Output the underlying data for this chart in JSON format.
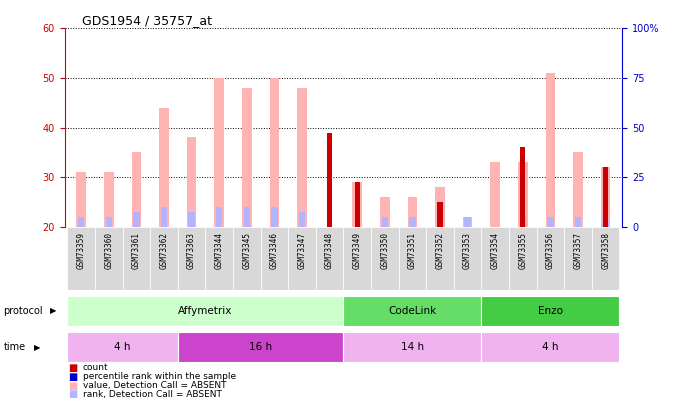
{
  "title": "GDS1954 / 35757_at",
  "samples": [
    "GSM73359",
    "GSM73360",
    "GSM73361",
    "GSM73362",
    "GSM73363",
    "GSM73344",
    "GSM73345",
    "GSM73346",
    "GSM73347",
    "GSM73348",
    "GSM73349",
    "GSM73350",
    "GSM73351",
    "GSM73352",
    "GSM73353",
    "GSM73354",
    "GSM73355",
    "GSM73356",
    "GSM73357",
    "GSM73358"
  ],
  "value_absent": [
    31,
    31,
    35,
    44,
    38,
    50,
    48,
    50,
    48,
    0,
    29,
    26,
    26,
    28,
    22,
    33,
    33,
    51,
    35,
    32
  ],
  "rank_absent": [
    22,
    22,
    23,
    24,
    23,
    24,
    24,
    24,
    23,
    0,
    0,
    22,
    22,
    0,
    22,
    0,
    22,
    22,
    22,
    21
  ],
  "count": [
    0,
    0,
    0,
    0,
    0,
    0,
    0,
    0,
    0,
    39,
    29,
    0,
    0,
    25,
    0,
    0,
    36,
    0,
    0,
    32
  ],
  "percentile": [
    0,
    0,
    0,
    0,
    0,
    0,
    0,
    0,
    0,
    2,
    2,
    0,
    0,
    3,
    0,
    0,
    2,
    0,
    0,
    2
  ],
  "ylim_left": [
    20,
    60
  ],
  "ylim_right": [
    0,
    100
  ],
  "left_ticks": [
    20,
    30,
    40,
    50,
    60
  ],
  "right_ticks": [
    0,
    25,
    50,
    75,
    100
  ],
  "protocols": [
    {
      "label": "Affymetrix",
      "start": 0,
      "end": 10,
      "color": "#ccffcc"
    },
    {
      "label": "CodeLink",
      "start": 10,
      "end": 15,
      "color": "#66dd66"
    },
    {
      "label": "Enzo",
      "start": 15,
      "end": 20,
      "color": "#44cc44"
    }
  ],
  "times": [
    {
      "label": "4 h",
      "start": 0,
      "end": 4,
      "color": "#f0b3f0"
    },
    {
      "label": "16 h",
      "start": 4,
      "end": 10,
      "color": "#cc44cc"
    },
    {
      "label": "14 h",
      "start": 10,
      "end": 15,
      "color": "#f0b3f0"
    },
    {
      "label": "4 h",
      "start": 15,
      "end": 20,
      "color": "#f0b3f0"
    }
  ],
  "bar_width": 0.35,
  "color_value_absent": "#ffb3b3",
  "color_rank_absent": "#b3b3ff",
  "color_count": "#cc0000",
  "color_percentile": "#0000cc",
  "left_axis_color": "#cc0000",
  "right_axis_color": "#0000cc",
  "label_row_bg": "#cccccc"
}
